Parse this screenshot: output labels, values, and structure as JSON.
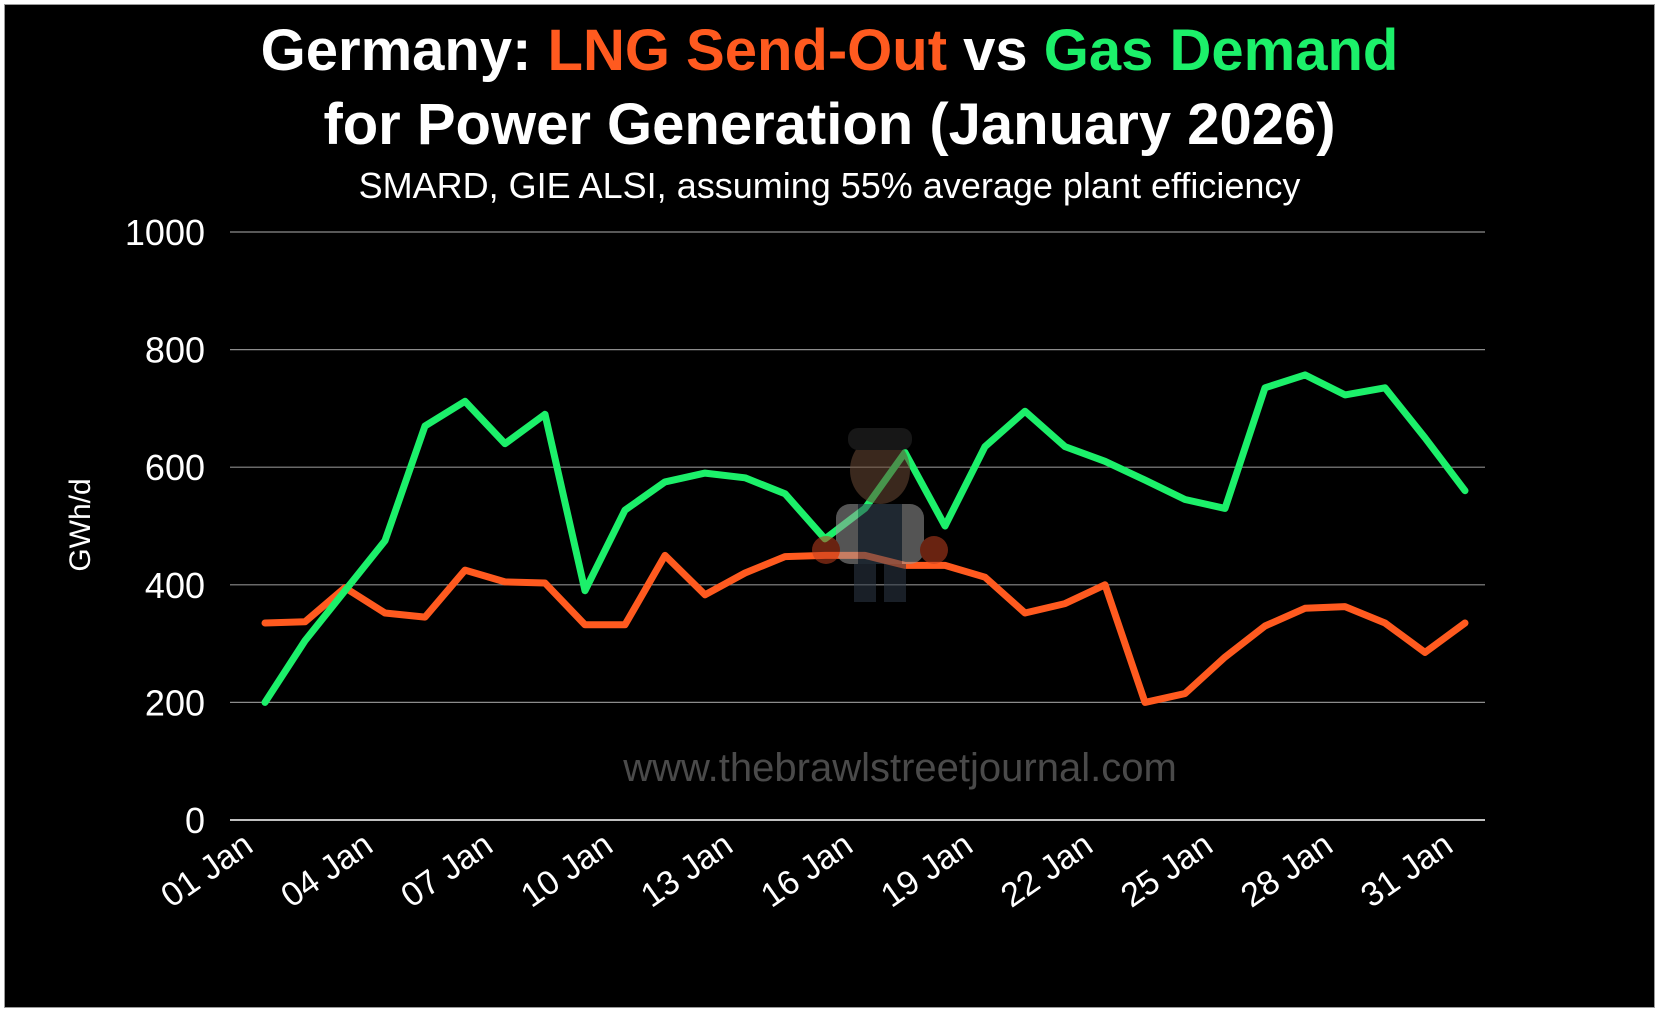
{
  "title": {
    "part1": "Germany: ",
    "part2": "LNG Send-Out",
    "part3": " vs ",
    "part4": "Gas Demand",
    "line2": "for Power Generation (January 2026)"
  },
  "subtitle": "SMARD, GIE ALSI, assuming 55% average plant efficiency",
  "watermark": "www.thebrawlstreetjournal.com",
  "colors": {
    "background": "#000000",
    "lng": "#ff5a1f",
    "gas": "#1cf06a",
    "grid": "#8c8c8c",
    "text": "#ffffff",
    "watermark": "#4a4a4a"
  },
  "mascot_icon": "brawler-mascot-icon",
  "chart_data": {
    "type": "line",
    "ylabel": "GWh/d",
    "xlabel": "",
    "ylim": [
      0,
      1000
    ],
    "yticks": [
      0,
      200,
      400,
      600,
      800,
      1000
    ],
    "grid": true,
    "x": [
      "01 Jan",
      "02 Jan",
      "03 Jan",
      "04 Jan",
      "05 Jan",
      "06 Jan",
      "07 Jan",
      "08 Jan",
      "09 Jan",
      "10 Jan",
      "11 Jan",
      "12 Jan",
      "13 Jan",
      "14 Jan",
      "15 Jan",
      "16 Jan",
      "17 Jan",
      "18 Jan",
      "19 Jan",
      "20 Jan",
      "21 Jan",
      "22 Jan",
      "23 Jan",
      "24 Jan",
      "25 Jan",
      "26 Jan",
      "27 Jan",
      "28 Jan",
      "29 Jan",
      "30 Jan",
      "31 Jan"
    ],
    "xticks": [
      "01 Jan",
      "04 Jan",
      "07 Jan",
      "10 Jan",
      "13 Jan",
      "16 Jan",
      "19 Jan",
      "22 Jan",
      "25 Jan",
      "28 Jan",
      "31 Jan"
    ],
    "series": [
      {
        "name": "LNG Send-Out",
        "color": "#ff5a1f",
        "values": [
          335,
          337,
          395,
          352,
          345,
          425,
          405,
          403,
          332,
          332,
          450,
          383,
          420,
          448,
          450,
          450,
          433,
          433,
          413,
          352,
          368,
          400,
          200,
          215,
          277,
          330,
          360,
          363,
          335,
          285,
          335
        ]
      },
      {
        "name": "Gas Demand",
        "color": "#1cf06a",
        "values": [
          200,
          305,
          390,
          475,
          670,
          712,
          640,
          690,
          390,
          527,
          575,
          590,
          582,
          555,
          478,
          530,
          625,
          500,
          635,
          695,
          635,
          610,
          578,
          545,
          530,
          735,
          757,
          723,
          735,
          650,
          560
        ]
      }
    ]
  }
}
